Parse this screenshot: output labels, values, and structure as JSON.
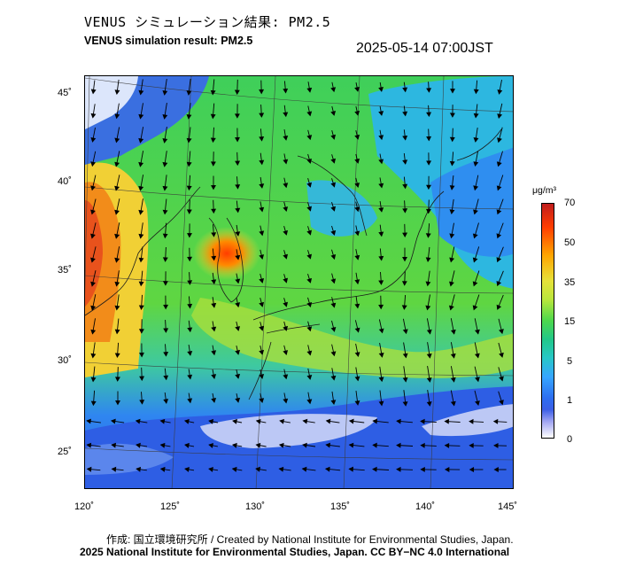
{
  "header": {
    "title_ja": "VENUS シミュレーション結果: PM2.5",
    "title_en": "VENUS simulation result: PM2.5",
    "timestamp": "2025-05-14 07:00JST"
  },
  "map": {
    "lat_ticks": [
      "45˚",
      "40˚",
      "35˚",
      "30˚",
      "25˚"
    ],
    "lon_ticks": [
      "120˚",
      "125˚",
      "130˚",
      "135˚",
      "140˚",
      "145˚"
    ],
    "wind_vectors": "arrow-icon",
    "fields": "pm2.5-concentration-shading"
  },
  "colorbar": {
    "unit": "μg/m³",
    "labels": [
      "70",
      "50",
      "35",
      "15",
      "5",
      "1",
      "0"
    ],
    "colors": [
      "#c01d1d",
      "#ffa500",
      "#e6e23a",
      "#4dd84d",
      "#27c7c7",
      "#2d6ef0",
      "#ffffff"
    ]
  },
  "footer": {
    "credit_ja": "作成: 国立環境研究所 / Created by National Institute for Environmental Studies, Japan.",
    "credit_cc": "2025 National Institute for Environmental Studies, Japan. CC BY−NC 4.0 International"
  }
}
